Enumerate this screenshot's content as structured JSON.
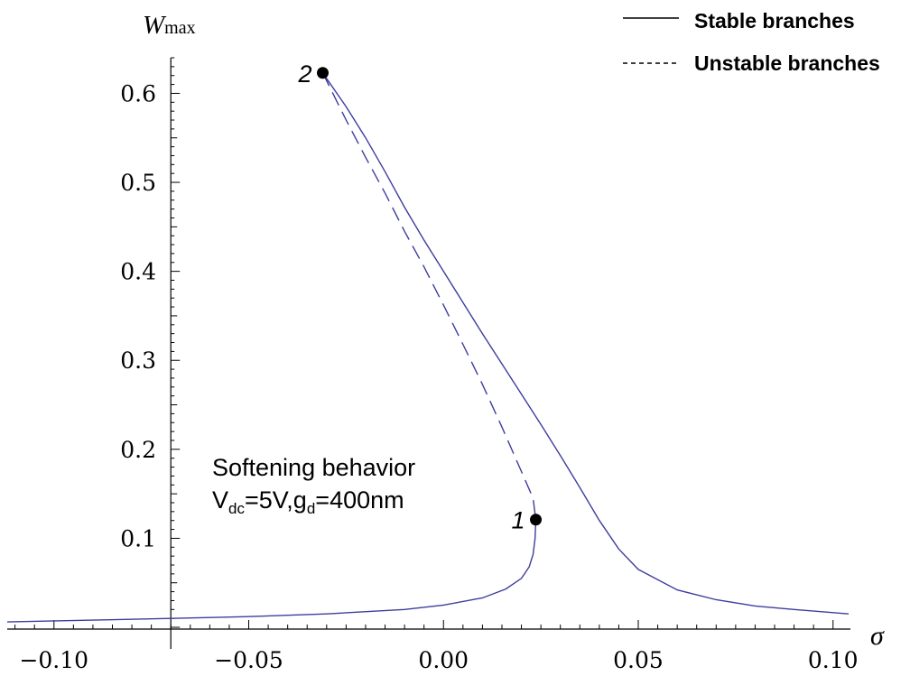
{
  "chart_data": {
    "type": "line",
    "xlabel": "σ",
    "ylabel": {
      "main": "W",
      "sub": "max"
    },
    "xlim": [
      -0.112,
      0.104
    ],
    "ylim": [
      -0.002,
      0.64
    ],
    "x_ticks": [
      -0.1,
      -0.05,
      0.0,
      0.05,
      0.1
    ],
    "x_tick_labels": [
      "−0.10",
      "−0.05",
      "0.00",
      "0.05",
      "0.10"
    ],
    "y_ticks": [
      0.1,
      0.2,
      0.3,
      0.4,
      0.5,
      0.6
    ],
    "y_tick_labels": [
      "0.1",
      "0.2",
      "0.3",
      "0.4",
      "0.5",
      "0.6"
    ],
    "grid": false,
    "legend_position": "top-right",
    "colors": {
      "curve": "#3d3d9e",
      "axis": "#000000"
    },
    "series": [
      {
        "name": "Stable branches",
        "style": "solid",
        "segments": [
          [
            [
              -0.112,
              0.006
            ],
            [
              -0.09,
              0.008
            ],
            [
              -0.07,
              0.01
            ],
            [
              -0.05,
              0.012
            ],
            [
              -0.03,
              0.015
            ],
            [
              -0.01,
              0.02
            ],
            [
              0.0,
              0.025
            ],
            [
              0.01,
              0.033
            ],
            [
              0.016,
              0.043
            ],
            [
              0.02,
              0.055
            ],
            [
              0.022,
              0.068
            ],
            [
              0.023,
              0.082
            ],
            [
              0.0235,
              0.1
            ],
            [
              0.0237,
              0.121
            ]
          ],
          [
            [
              -0.031,
              0.623
            ],
            [
              -0.025,
              0.585
            ],
            [
              -0.02,
              0.55
            ],
            [
              -0.015,
              0.512
            ],
            [
              -0.01,
              0.472
            ],
            [
              -0.005,
              0.435
            ],
            [
              0.0,
              0.4
            ],
            [
              0.005,
              0.365
            ],
            [
              0.01,
              0.33
            ],
            [
              0.015,
              0.296
            ],
            [
              0.02,
              0.262
            ],
            [
              0.025,
              0.228
            ],
            [
              0.03,
              0.193
            ],
            [
              0.035,
              0.157
            ],
            [
              0.04,
              0.12
            ],
            [
              0.045,
              0.088
            ],
            [
              0.05,
              0.065
            ],
            [
              0.06,
              0.042
            ],
            [
              0.07,
              0.031
            ],
            [
              0.08,
              0.024
            ],
            [
              0.09,
              0.02
            ],
            [
              0.104,
              0.015
            ]
          ]
        ]
      },
      {
        "name": "Unstable branches",
        "style": "dashed",
        "segments": [
          [
            [
              -0.031,
              0.623
            ],
            [
              -0.025,
              0.57
            ],
            [
              -0.02,
              0.528
            ],
            [
              -0.015,
              0.488
            ],
            [
              -0.01,
              0.445
            ],
            [
              -0.005,
              0.405
            ],
            [
              0.0,
              0.362
            ],
            [
              0.005,
              0.318
            ],
            [
              0.01,
              0.273
            ],
            [
              0.015,
              0.225
            ],
            [
              0.02,
              0.175
            ],
            [
              0.023,
              0.145
            ],
            [
              0.0237,
              0.121
            ]
          ]
        ]
      }
    ],
    "points": [
      {
        "label": "1",
        "x": 0.0237,
        "y": 0.121
      },
      {
        "label": "2",
        "x": -0.031,
        "y": 0.623
      }
    ],
    "annotation": {
      "line1": "Softening behavior",
      "line2_parts": [
        "V",
        "dc",
        "=5V,g",
        "d",
        "=400nm"
      ]
    }
  }
}
